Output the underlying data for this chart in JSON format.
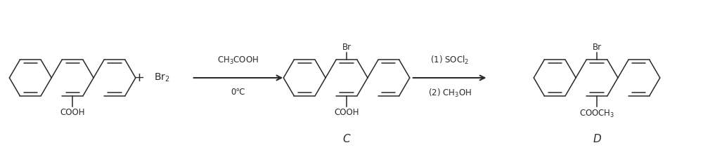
{
  "bg_color": "#ffffff",
  "line_color": "#2a2a2a",
  "text_color": "#2a2a2a",
  "figsize": [
    10.0,
    2.24
  ],
  "dpi": 100,
  "plus_text": "+",
  "br2_text": "Br$_2$",
  "arrow1_label_top": "CH$_3$COOH",
  "arrow1_label_bot": "0℃",
  "arrow2_label_top": "(1) SOCl$_2$",
  "arrow2_label_bot": "(2) CH$_3$OH",
  "label_C": "C",
  "label_D": "D",
  "cooh_text": "COOH",
  "br_text": "Br",
  "cooch3_text": "COOCH$_3$"
}
